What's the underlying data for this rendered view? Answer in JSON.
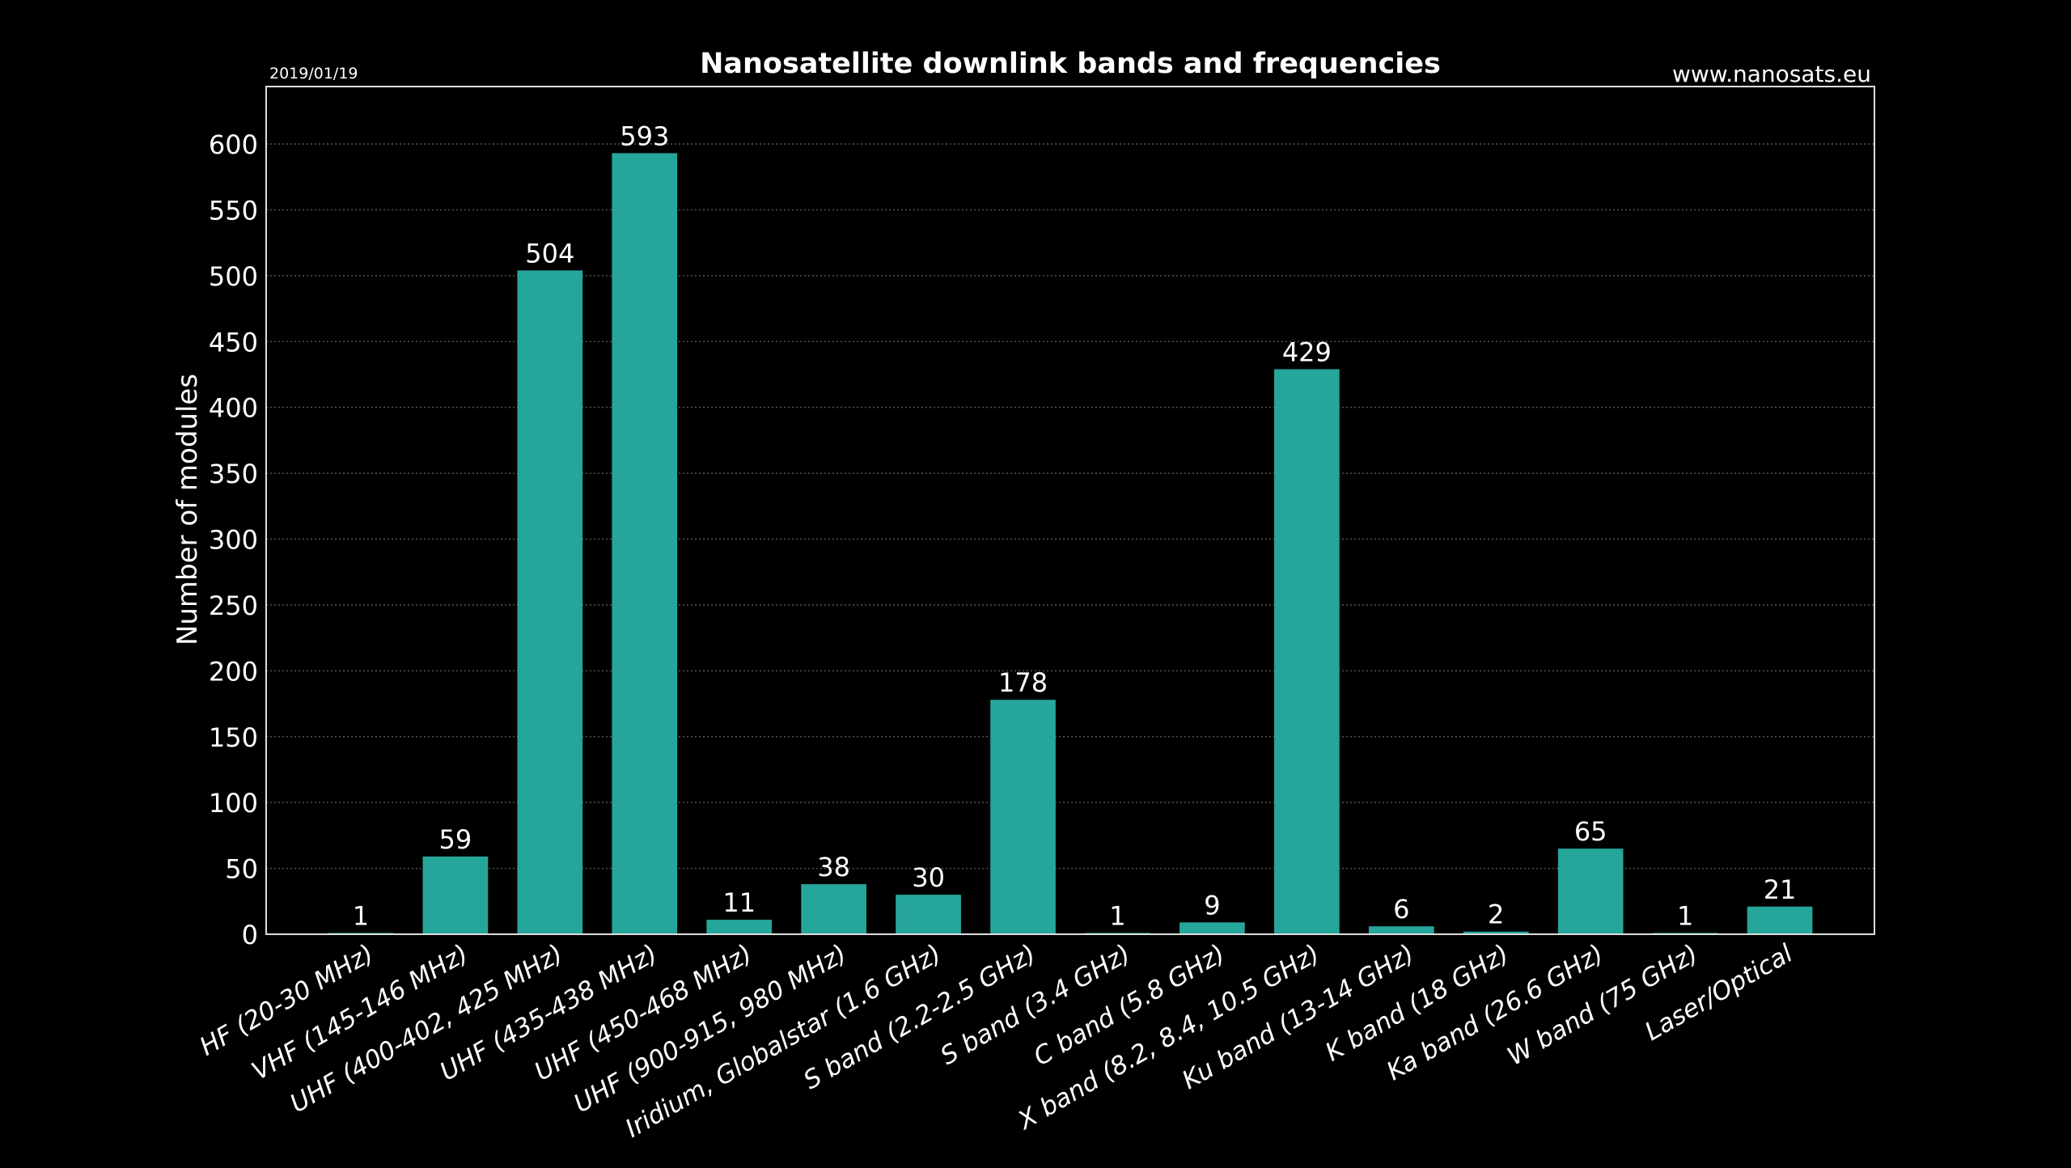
{
  "chart_data": {
    "type": "bar",
    "title": "Nanosatellite downlink bands and frequencies",
    "date": "2019/01/19",
    "source": "www.nanosats.eu",
    "xlabel": "",
    "ylabel": "Number of modules",
    "ylim": [
      0,
      630
    ],
    "yticks": [
      0,
      50,
      100,
      150,
      200,
      250,
      300,
      350,
      400,
      450,
      500,
      550,
      600
    ],
    "grid": true,
    "bar_color": "#26a69a",
    "categories": [
      "HF (20-30 MHz)",
      "VHF (145-146 MHz)",
      "UHF (400-402, 425 MHz)",
      "UHF (435-438 MHz)",
      "UHF (450-468 MHz)",
      "UHF (900-915, 980 MHz)",
      "Iridium, Globalstar (1.6 GHz)",
      "S band (2.2-2.5 GHz)",
      "S band (3.4 GHz)",
      "C band (5.8 GHz)",
      "X band (8.2, 8.4, 10.5 GHz)",
      "Ku band (13-14 GHz)",
      "K band (18 GHz)",
      "Ka band (26.6 GHz)",
      "W band (75 GHz)",
      "Laser/Optical"
    ],
    "values": [
      1,
      59,
      504,
      593,
      11,
      38,
      30,
      178,
      1,
      9,
      429,
      6,
      2,
      65,
      1,
      21
    ]
  }
}
